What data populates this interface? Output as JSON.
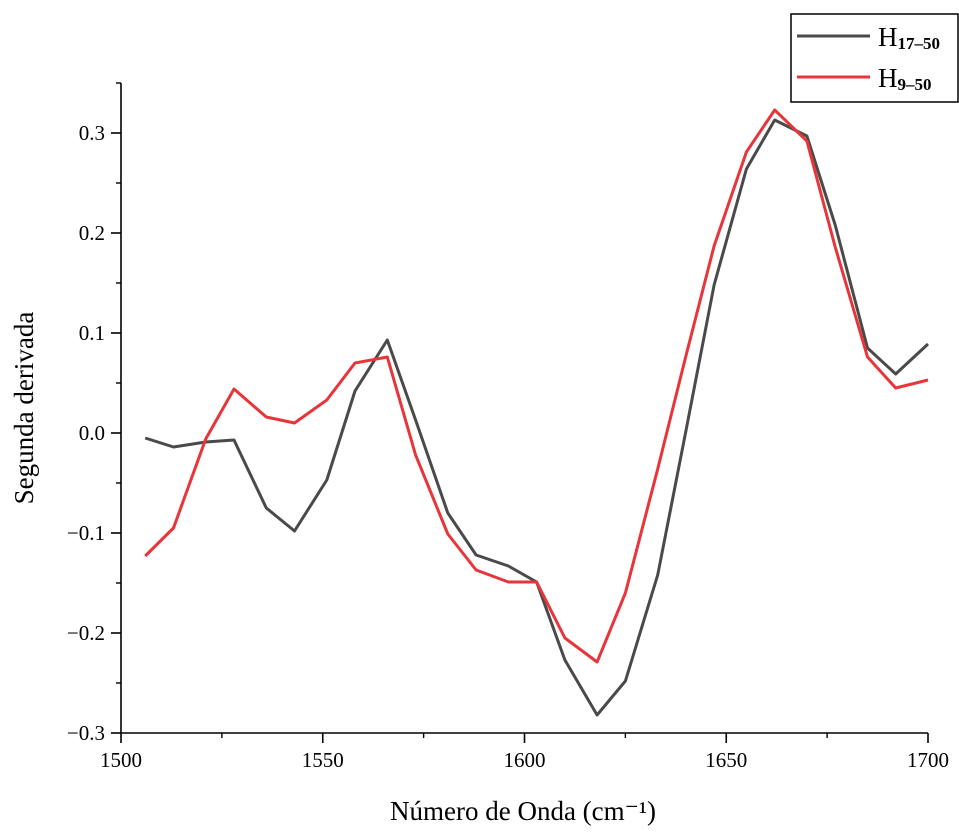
{
  "chart_data": {
    "type": "line",
    "xlabel": "Número de Onda (cm⁻¹)",
    "ylabel": "Segunda derivada",
    "xlim": [
      1500,
      1700
    ],
    "ylim": [
      -0.3,
      0.35
    ],
    "x_ticks": [
      1500,
      1550,
      1600,
      1650,
      1700
    ],
    "x_tick_labels": [
      "1500",
      "1550",
      "1600",
      "1650",
      "1700"
    ],
    "y_ticks": [
      -0.3,
      -0.2,
      -0.1,
      0.0,
      0.1,
      0.2,
      0.3
    ],
    "y_tick_labels": [
      "−0.3",
      "−0.2",
      "−0.1",
      "0.0",
      "0.1",
      "0.2",
      "0.3"
    ],
    "grid": false,
    "legend_position": "top-right",
    "series": [
      {
        "name_main": "H",
        "name_sub": "17–50",
        "color": "#4a4a4a",
        "x": [
          1506,
          1513,
          1521,
          1528,
          1536,
          1543,
          1551,
          1558,
          1566,
          1573,
          1581,
          1588,
          1596,
          1603,
          1610,
          1618,
          1625,
          1633,
          1640,
          1647,
          1655,
          1662,
          1670,
          1677,
          1685,
          1692,
          1700
        ],
        "values": [
          -0.005,
          -0.014,
          -0.009,
          -0.007,
          -0.075,
          -0.098,
          -0.047,
          0.042,
          0.093,
          0.013,
          -0.08,
          -0.122,
          -0.133,
          -0.149,
          -0.227,
          -0.282,
          -0.248,
          -0.142,
          0.002,
          0.148,
          0.264,
          0.313,
          0.297,
          0.208,
          0.085,
          0.059,
          0.089
        ]
      },
      {
        "name_main": "H",
        "name_sub": "9–50",
        "color": "#e8353b",
        "x": [
          1506,
          1513,
          1521,
          1528,
          1536,
          1543,
          1551,
          1558,
          1566,
          1573,
          1581,
          1588,
          1596,
          1603,
          1610,
          1618,
          1625,
          1633,
          1640,
          1647,
          1655,
          1662,
          1670,
          1677,
          1685,
          1692,
          1700
        ],
        "values": [
          -0.123,
          -0.095,
          -0.006,
          0.044,
          0.016,
          0.01,
          0.033,
          0.07,
          0.076,
          -0.022,
          -0.101,
          -0.137,
          -0.149,
          -0.149,
          -0.205,
          -0.229,
          -0.16,
          -0.036,
          0.077,
          0.187,
          0.281,
          0.323,
          0.292,
          0.186,
          0.076,
          0.045,
          0.053
        ]
      }
    ]
  }
}
